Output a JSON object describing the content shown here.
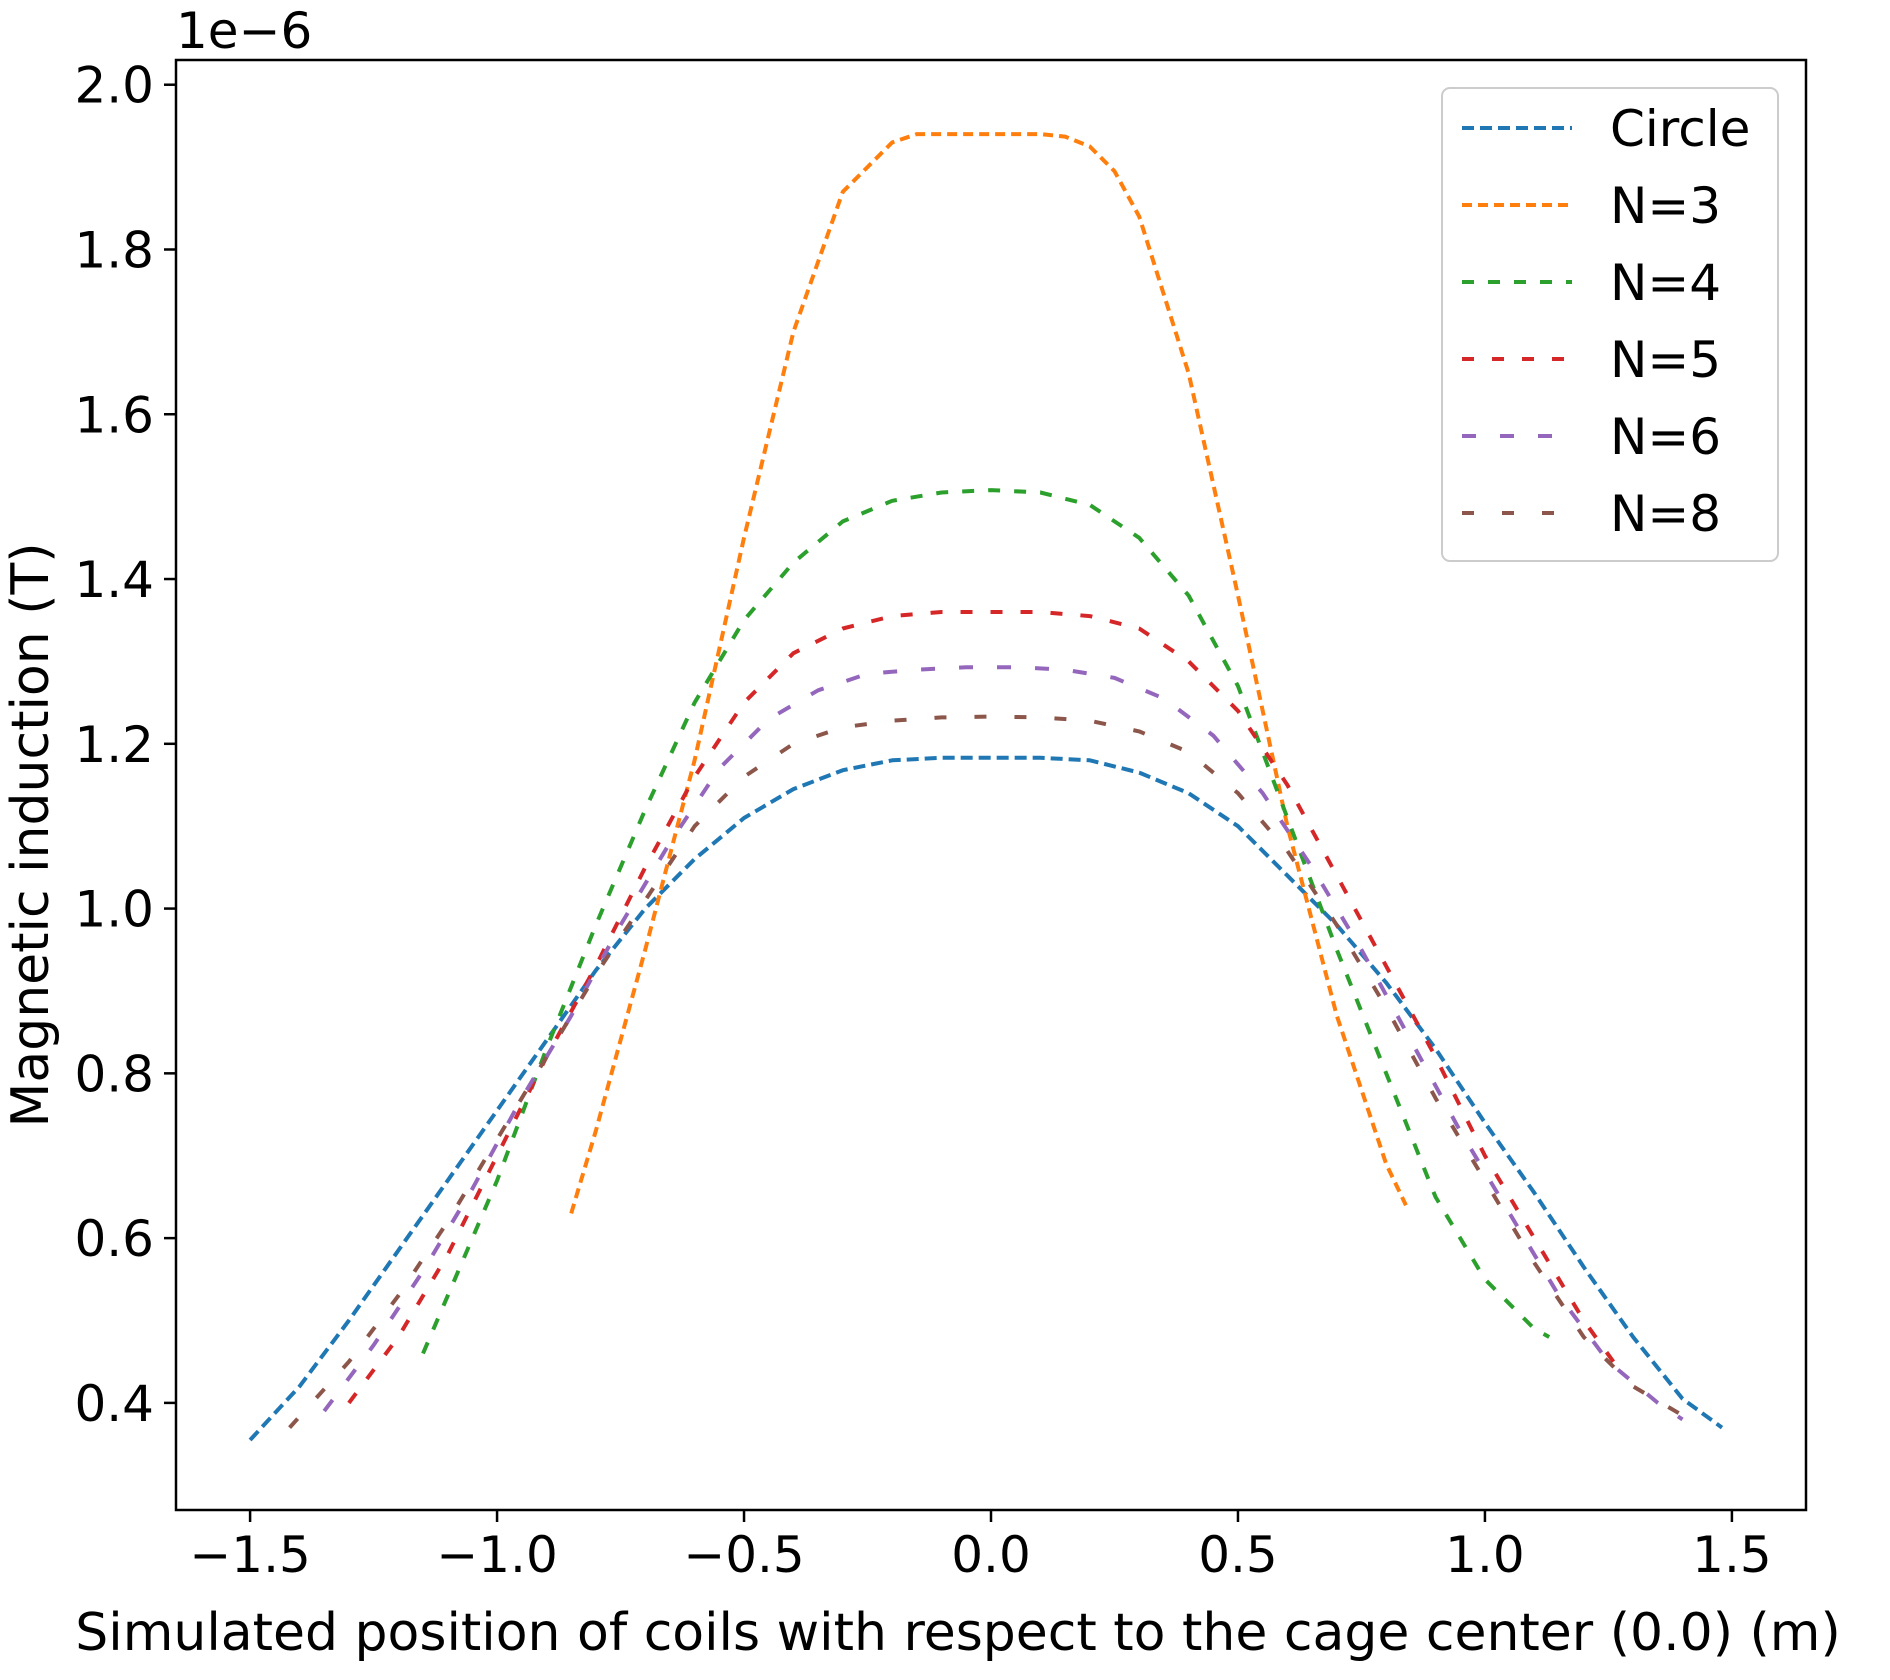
{
  "chart_data": {
    "type": "line",
    "title": "",
    "xlabel": "Simulated position of coils with respect to the cage center (0.0) (m)",
    "ylabel": "Magnetic induction (T)",
    "offset_label": "1e−6",
    "xlim": [
      -1.65,
      1.65
    ],
    "ylim": [
      0.27,
      2.03
    ],
    "xticks": [
      -1.5,
      -1.0,
      -0.5,
      0.0,
      0.5,
      1.0,
      1.5
    ],
    "xtick_labels": [
      "−1.5",
      "−1.0",
      "−0.5",
      "0.0",
      "0.5",
      "1.0",
      "1.5"
    ],
    "yticks": [
      0.4,
      0.6,
      0.8,
      1.0,
      1.2,
      1.4,
      1.6,
      1.8,
      2.0
    ],
    "ytick_labels": [
      "0.4",
      "0.6",
      "0.8",
      "1.0",
      "1.2",
      "1.4",
      "1.6",
      "1.8",
      "2.0"
    ],
    "grid": false,
    "legend_position": "top-right",
    "series": [
      {
        "name": "Circle",
        "color": "#1f77b4",
        "dash": "12,6",
        "x": [
          -1.5,
          -1.4,
          -1.3,
          -1.2,
          -1.1,
          -1.0,
          -0.9,
          -0.8,
          -0.7,
          -0.6,
          -0.5,
          -0.4,
          -0.3,
          -0.2,
          -0.1,
          0.0,
          0.1,
          0.2,
          0.3,
          0.4,
          0.5,
          0.6,
          0.7,
          0.8,
          0.9,
          1.0,
          1.1,
          1.2,
          1.3,
          1.4,
          1.48
        ],
        "y": [
          0.355,
          0.42,
          0.5,
          0.585,
          0.67,
          0.755,
          0.84,
          0.925,
          1.0,
          1.06,
          1.11,
          1.145,
          1.168,
          1.18,
          1.183,
          1.183,
          1.183,
          1.18,
          1.165,
          1.14,
          1.1,
          1.04,
          0.98,
          0.91,
          0.83,
          0.74,
          0.655,
          0.565,
          0.48,
          0.405,
          0.37
        ]
      },
      {
        "name": "N=3",
        "color": "#ff7f0e",
        "dash": "10,6",
        "x": [
          -0.85,
          -0.8,
          -0.7,
          -0.6,
          -0.5,
          -0.4,
          -0.3,
          -0.2,
          -0.15,
          -0.1,
          0.0,
          0.1,
          0.15,
          0.2,
          0.25,
          0.3,
          0.4,
          0.5,
          0.6,
          0.7,
          0.8,
          0.84
        ],
        "y": [
          0.63,
          0.73,
          0.95,
          1.18,
          1.45,
          1.7,
          1.87,
          1.93,
          1.94,
          1.94,
          1.94,
          1.94,
          1.937,
          1.925,
          1.895,
          1.84,
          1.65,
          1.38,
          1.1,
          0.87,
          0.69,
          0.64
        ]
      },
      {
        "name": "N=4",
        "color": "#2ca02c",
        "dash": "12,14",
        "x": [
          -1.15,
          -1.1,
          -1.0,
          -0.9,
          -0.8,
          -0.7,
          -0.6,
          -0.5,
          -0.4,
          -0.3,
          -0.2,
          -0.1,
          0.0,
          0.1,
          0.2,
          0.3,
          0.4,
          0.5,
          0.6,
          0.7,
          0.8,
          0.9,
          1.0,
          1.1,
          1.13
        ],
        "y": [
          0.46,
          0.53,
          0.67,
          0.83,
          0.98,
          1.12,
          1.25,
          1.35,
          1.42,
          1.47,
          1.495,
          1.505,
          1.508,
          1.505,
          1.49,
          1.45,
          1.38,
          1.27,
          1.11,
          0.95,
          0.8,
          0.65,
          0.55,
          0.49,
          0.48
        ]
      },
      {
        "name": "N=5",
        "color": "#d62728",
        "dash": "12,18",
        "x": [
          -1.3,
          -1.2,
          -1.1,
          -1.0,
          -0.9,
          -0.8,
          -0.7,
          -0.6,
          -0.5,
          -0.4,
          -0.3,
          -0.2,
          -0.1,
          0.0,
          0.1,
          0.2,
          0.3,
          0.4,
          0.5,
          0.6,
          0.7,
          0.8,
          0.9,
          1.0,
          1.1,
          1.2,
          1.26
        ],
        "y": [
          0.4,
          0.48,
          0.58,
          0.7,
          0.82,
          0.93,
          1.05,
          1.16,
          1.25,
          1.31,
          1.34,
          1.355,
          1.36,
          1.36,
          1.36,
          1.355,
          1.34,
          1.3,
          1.24,
          1.15,
          1.04,
          0.93,
          0.82,
          0.7,
          0.6,
          0.5,
          0.45
        ]
      },
      {
        "name": "N=6",
        "color": "#9467bd",
        "dash": "14,24",
        "x": [
          -1.35,
          -1.25,
          -1.15,
          -1.05,
          -0.95,
          -0.85,
          -0.75,
          -0.65,
          -0.55,
          -0.45,
          -0.35,
          -0.25,
          -0.15,
          -0.05,
          0.05,
          0.15,
          0.25,
          0.35,
          0.45,
          0.55,
          0.65,
          0.75,
          0.85,
          0.95,
          1.05,
          1.15,
          1.25,
          1.35,
          1.4
        ],
        "y": [
          0.39,
          0.47,
          0.56,
          0.66,
          0.77,
          0.87,
          0.98,
          1.08,
          1.17,
          1.23,
          1.265,
          1.285,
          1.29,
          1.293,
          1.293,
          1.29,
          1.28,
          1.255,
          1.21,
          1.14,
          1.05,
          0.95,
          0.84,
          0.73,
          0.63,
          0.53,
          0.45,
          0.4,
          0.38
        ]
      },
      {
        "name": "N=8",
        "color": "#8c564b",
        "dash": "12,28",
        "x": [
          -1.42,
          -1.3,
          -1.2,
          -1.1,
          -1.0,
          -0.9,
          -0.8,
          -0.7,
          -0.6,
          -0.5,
          -0.4,
          -0.3,
          -0.2,
          -0.1,
          0.0,
          0.1,
          0.2,
          0.3,
          0.4,
          0.5,
          0.6,
          0.7,
          0.8,
          0.9,
          1.0,
          1.1,
          1.2,
          1.3,
          1.4
        ],
        "y": [
          0.37,
          0.45,
          0.53,
          0.62,
          0.72,
          0.82,
          0.92,
          1.01,
          1.1,
          1.16,
          1.2,
          1.22,
          1.228,
          1.232,
          1.233,
          1.232,
          1.228,
          1.215,
          1.19,
          1.14,
          1.07,
          0.98,
          0.88,
          0.77,
          0.67,
          0.57,
          0.48,
          0.42,
          0.385
        ]
      }
    ]
  }
}
